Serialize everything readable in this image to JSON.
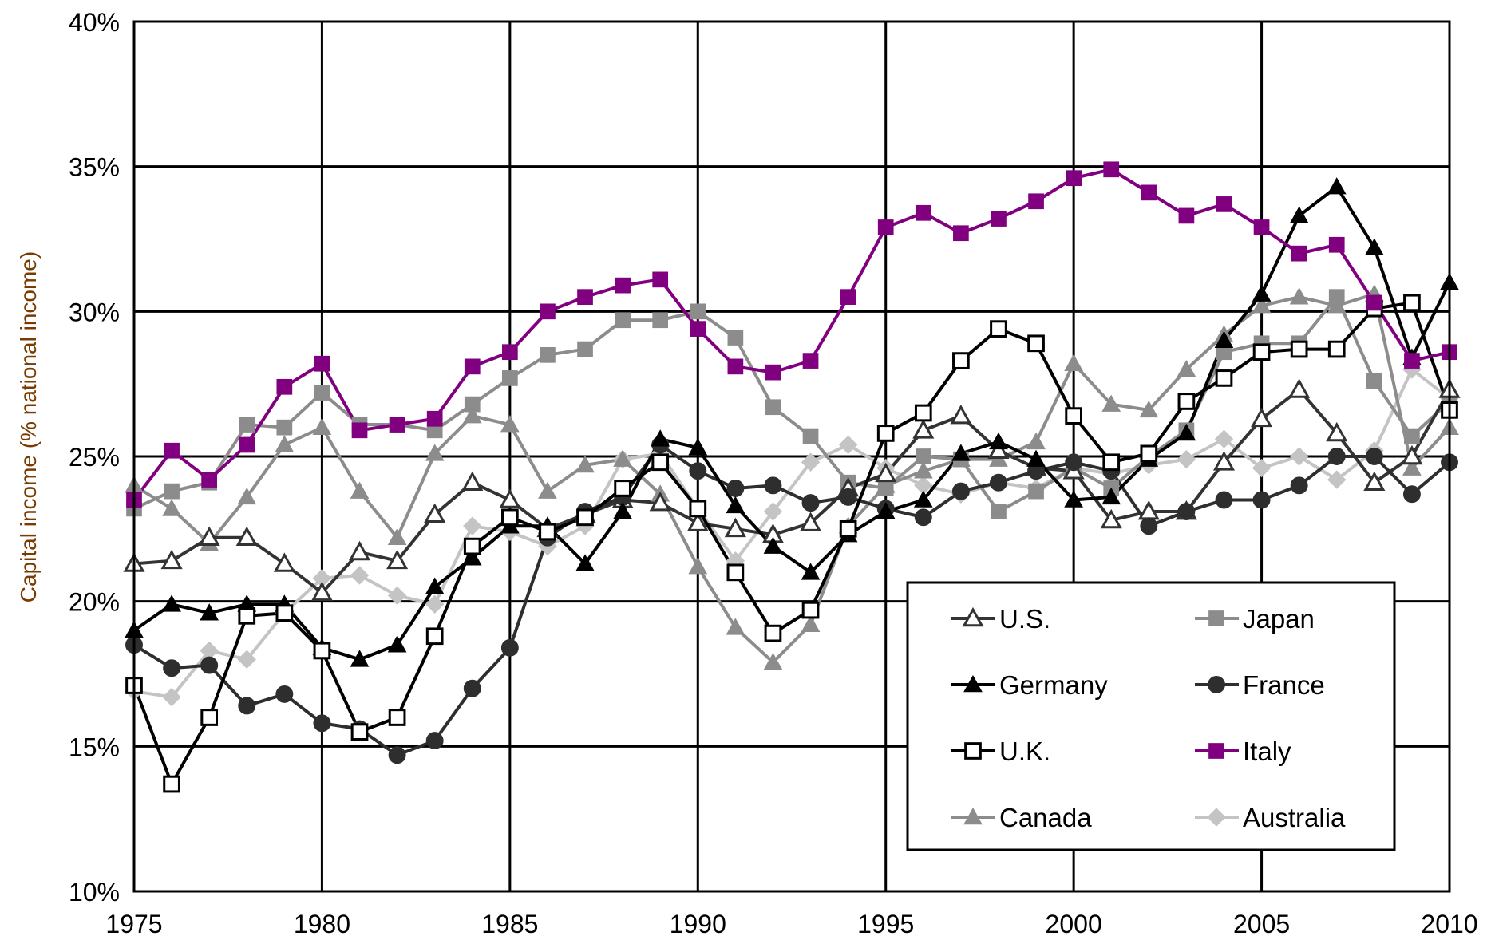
{
  "chart_data": {
    "type": "line",
    "title": "",
    "xlabel": "",
    "ylabel": "Capital income (% national income)",
    "xlim": [
      1975,
      2010
    ],
    "ylim": [
      10,
      40
    ],
    "x_ticks": [
      "1975",
      "1980",
      "1985",
      "1990",
      "1995",
      "2000",
      "2005",
      "2010"
    ],
    "y_ticks": [
      "10%",
      "15%",
      "20%",
      "25%",
      "30%",
      "35%",
      "40%"
    ],
    "grid": true,
    "legend_position": "bottom-right",
    "x": [
      1975,
      1976,
      1977,
      1978,
      1979,
      1980,
      1981,
      1982,
      1983,
      1984,
      1985,
      1986,
      1987,
      1988,
      1989,
      1990,
      1991,
      1992,
      1993,
      1994,
      1995,
      1996,
      1997,
      1998,
      1999,
      2000,
      2001,
      2002,
      2003,
      2004,
      2005,
      2006,
      2007,
      2008,
      2009,
      2010
    ],
    "series": [
      {
        "name": "U.S.",
        "color": "#333333",
        "marker": "triangle-open",
        "values": [
          21.3,
          21.4,
          22.2,
          22.2,
          21.3,
          20.3,
          21.7,
          21.4,
          23.0,
          24.1,
          23.5,
          22.5,
          23.0,
          23.5,
          23.4,
          22.7,
          22.5,
          22.3,
          22.7,
          23.9,
          24.4,
          25.9,
          26.4,
          25.2,
          24.6,
          24.5,
          22.8,
          23.1,
          23.1,
          24.8,
          26.3,
          27.3,
          25.8,
          24.1,
          25.0,
          27.3
        ]
      },
      {
        "name": "Japan",
        "color": "#8c8c8c",
        "marker": "square",
        "values": [
          23.2,
          23.8,
          24.1,
          26.1,
          26.0,
          27.2,
          26.1,
          26.1,
          25.9,
          26.8,
          27.7,
          28.5,
          28.7,
          29.7,
          29.7,
          30.0,
          29.1,
          26.7,
          25.7,
          24.1,
          23.9,
          25.0,
          24.9,
          23.1,
          23.8,
          24.6,
          23.9,
          25.0,
          25.9,
          28.6,
          28.9,
          28.9,
          30.5,
          27.6,
          25.7,
          26.9
        ]
      },
      {
        "name": "Germany",
        "color": "#000000",
        "marker": "triangle",
        "values": [
          19.0,
          19.9,
          19.6,
          19.9,
          19.9,
          18.4,
          18.0,
          18.5,
          20.5,
          21.5,
          22.6,
          22.6,
          21.3,
          23.1,
          25.6,
          25.3,
          23.3,
          21.9,
          21.0,
          22.3,
          23.1,
          23.5,
          25.1,
          25.5,
          24.9,
          23.5,
          23.6,
          24.9,
          25.8,
          29.0,
          30.6,
          33.3,
          34.3,
          32.2,
          28.4,
          31.0
        ]
      },
      {
        "name": "France",
        "color": "#2e2e2e",
        "marker": "circle",
        "values": [
          18.5,
          17.7,
          17.8,
          16.4,
          16.8,
          15.8,
          15.6,
          14.7,
          15.2,
          17.0,
          18.4,
          22.2,
          23.1,
          23.6,
          25.4,
          24.5,
          23.9,
          24.0,
          23.4,
          23.6,
          23.2,
          22.9,
          23.8,
          24.1,
          24.5,
          24.8,
          24.5,
          22.6,
          23.1,
          23.5,
          23.5,
          24.0,
          25.0,
          25.0,
          23.7,
          24.8
        ]
      },
      {
        "name": "U.K.",
        "color": "#000000",
        "marker": "square-open",
        "values": [
          17.1,
          13.7,
          16.0,
          19.5,
          19.6,
          18.3,
          15.5,
          16.0,
          18.8,
          21.9,
          22.9,
          22.4,
          22.9,
          23.9,
          24.8,
          23.2,
          21.0,
          18.9,
          19.7,
          22.5,
          25.8,
          26.5,
          28.3,
          29.4,
          28.9,
          26.4,
          24.8,
          25.1,
          26.9,
          27.7,
          28.6,
          28.7,
          28.7,
          30.1,
          30.3,
          26.6
        ]
      },
      {
        "name": "Italy",
        "color": "#800080",
        "marker": "square",
        "values": [
          23.5,
          25.2,
          24.2,
          25.4,
          27.4,
          28.2,
          25.9,
          26.1,
          26.3,
          28.1,
          28.6,
          30.0,
          30.5,
          30.9,
          31.1,
          29.4,
          28.1,
          27.9,
          28.3,
          30.5,
          32.9,
          33.4,
          32.7,
          33.2,
          33.8,
          34.6,
          34.9,
          34.1,
          33.3,
          33.7,
          32.9,
          32.0,
          32.3,
          30.3,
          28.3,
          28.6
        ]
      },
      {
        "name": "Canada",
        "color": "#8c8c8c",
        "marker": "triangle",
        "values": [
          24.0,
          23.2,
          22.0,
          23.6,
          25.4,
          26.0,
          23.8,
          22.2,
          25.1,
          26.4,
          26.1,
          23.8,
          24.7,
          24.9,
          23.7,
          21.2,
          19.1,
          17.9,
          19.2,
          22.6,
          24.0,
          24.5,
          24.9,
          24.9,
          25.5,
          28.2,
          26.8,
          26.6,
          28.0,
          29.2,
          30.2,
          30.5,
          30.2,
          30.6,
          24.6,
          26.0
        ]
      },
      {
        "name": "Australia",
        "color": "#c4c4c4",
        "marker": "diamond",
        "values": [
          16.9,
          16.7,
          18.3,
          18.0,
          19.6,
          20.8,
          20.9,
          20.2,
          19.9,
          22.6,
          22.4,
          21.9,
          22.6,
          24.9,
          25.1,
          23.2,
          21.4,
          23.1,
          24.8,
          25.4,
          24.6,
          24.0,
          23.7,
          24.1,
          23.9,
          24.6,
          24.4,
          24.7,
          24.9,
          25.6,
          24.6,
          25.0,
          24.2,
          25.2,
          28.0,
          27.0
        ]
      }
    ]
  }
}
